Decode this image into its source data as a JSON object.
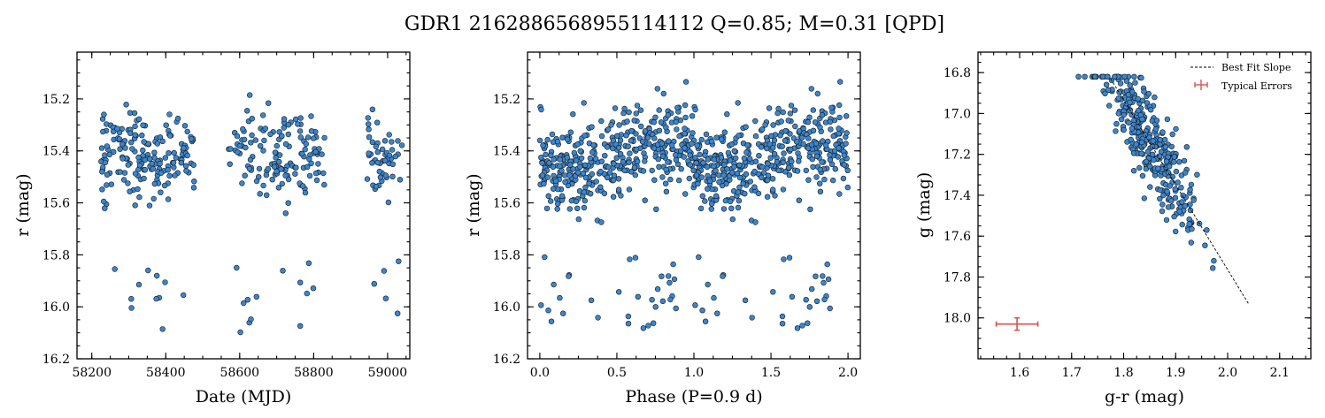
{
  "figure": {
    "title": "GDR1 2162886568955114112  Q=0.85; M=0.31 [QPD]"
  },
  "colors": {
    "point_fill": "#3a86cf",
    "point_edge": "#1a1a1a",
    "error_bar": "#d9534f",
    "fit_line": "#000000"
  },
  "chart_data": [
    {
      "type": "scatter",
      "title": "",
      "xlabel": "Date (MJD)",
      "ylabel": "r (mag)",
      "xlim": [
        58160,
        59060
      ],
      "ylim": [
        16.2,
        15.02
      ],
      "y_inverted": true,
      "xticks": [
        58200,
        58400,
        58600,
        58800,
        59000
      ],
      "yticks": [
        15.2,
        15.4,
        15.6,
        15.8,
        16.0,
        16.2
      ],
      "xtick_labels": [
        "58200",
        "58400",
        "58600",
        "58800",
        "59000"
      ],
      "ytick_labels": [
        "15.2",
        "15.4",
        "15.6",
        "15.8",
        "16.0",
        "16.2"
      ],
      "grid": false,
      "points_summary": "clusters of observations at MJD ~58220-58480, ~58570-58830, ~58950-59040"
    },
    {
      "type": "scatter",
      "title": "",
      "xlabel": "Phase (P=0.9 d)",
      "ylabel": "r (mag)",
      "xlim": [
        -0.08,
        2.08
      ],
      "ylim": [
        16.2,
        15.02
      ],
      "y_inverted": true,
      "xticks": [
        0.0,
        0.5,
        1.0,
        1.5,
        2.0
      ],
      "yticks": [
        15.2,
        15.4,
        15.6,
        15.8,
        16.0,
        16.2
      ],
      "xtick_labels": [
        "0.0",
        "0.5",
        "1.0",
        "1.5",
        "2.0"
      ],
      "ytick_labels": [
        "15.2",
        "15.4",
        "15.6",
        "15.8",
        "16.0",
        "16.2"
      ],
      "grid": false,
      "points_summary": "phase-folded light curve repeated over two cycles"
    },
    {
      "type": "scatter",
      "title": "",
      "xlabel": "g-r (mag)",
      "ylabel": "g (mag)",
      "xlim": [
        1.52,
        2.16
      ],
      "ylim": [
        18.2,
        16.7
      ],
      "y_inverted": true,
      "xticks": [
        1.6,
        1.7,
        1.8,
        1.9,
        2.0,
        2.1
      ],
      "yticks": [
        16.8,
        17.0,
        17.2,
        17.4,
        17.6,
        17.8,
        18.0
      ],
      "xtick_labels": [
        "1.6",
        "1.7",
        "1.8",
        "1.9",
        "2.0",
        "2.1"
      ],
      "ytick_labels": [
        "16.8",
        "17.0",
        "17.2",
        "17.4",
        "17.6",
        "17.8",
        "18.0"
      ],
      "grid": false,
      "legend": {
        "placement": "top-right",
        "entries": [
          "Best Fit Slope",
          "Typical Errors"
        ]
      },
      "fit_line": {
        "x": [
          1.775,
          2.04
        ],
        "y": [
          16.83,
          17.93
        ]
      },
      "typical_error": {
        "x": 1.595,
        "y": 18.03,
        "xerr": 0.04,
        "yerr": 0.03
      }
    }
  ]
}
